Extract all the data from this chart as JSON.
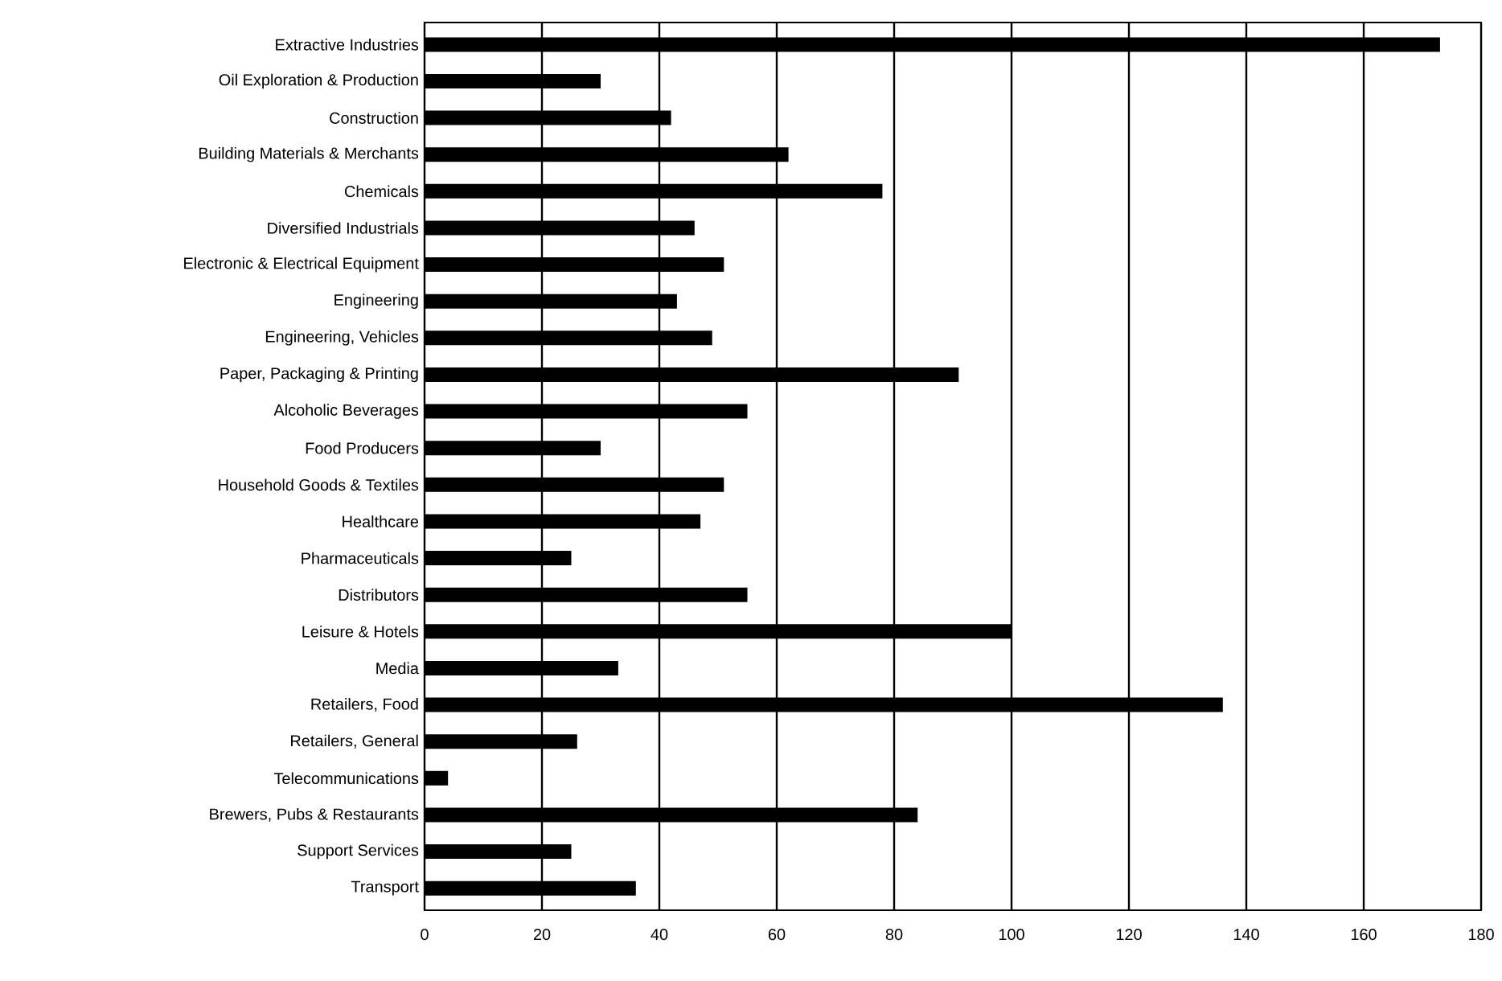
{
  "chart_data": {
    "type": "bar",
    "orientation": "horizontal",
    "categories": [
      "Extractive Industries",
      "Oil Exploration & Production",
      "Construction",
      "Building Materials & Merchants",
      "Chemicals",
      "Diversified Industrials",
      "Electronic & Electrical Equipment",
      "Engineering",
      "Engineering, Vehicles",
      "Paper, Packaging & Printing",
      "Alcoholic Beverages",
      "Food Producers",
      "Household Goods & Textiles",
      "Healthcare",
      "Pharmaceuticals",
      "Distributors",
      "Leisure & Hotels",
      "Media",
      "Retailers, Food",
      "Retailers, General",
      "Telecommunications",
      "Brewers, Pubs & Restaurants",
      "Support Services",
      "Transport"
    ],
    "values": [
      173,
      30,
      42,
      62,
      78,
      46,
      51,
      43,
      49,
      91,
      55,
      30,
      51,
      47,
      25,
      55,
      100,
      33,
      136,
      26,
      4,
      84,
      25,
      36
    ],
    "color": "#000000",
    "xlim": [
      0,
      180
    ],
    "xticks": [
      0,
      20,
      40,
      60,
      80,
      100,
      120,
      140,
      160,
      180
    ],
    "grid": "x"
  }
}
